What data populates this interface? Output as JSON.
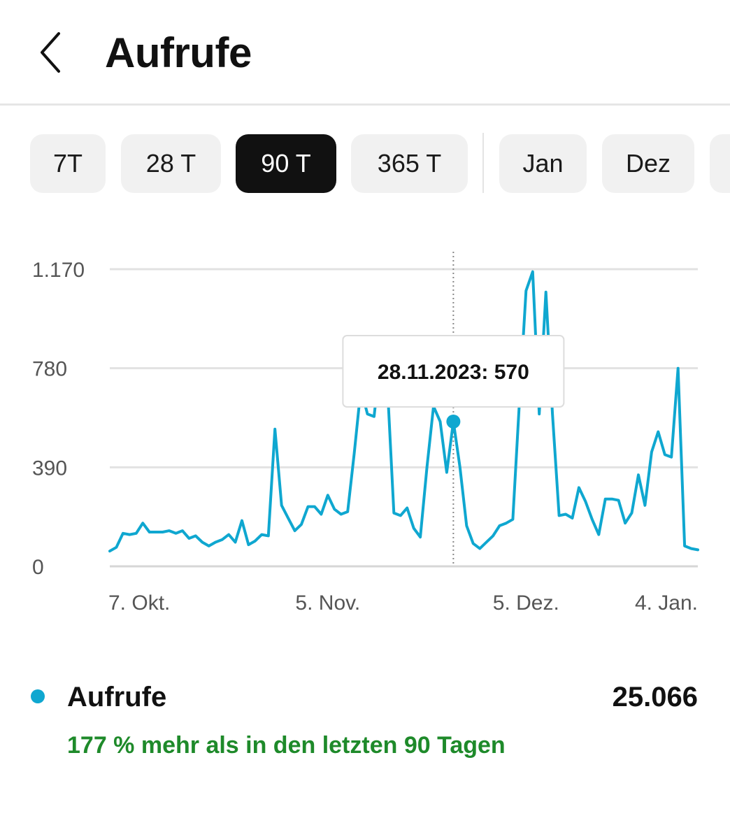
{
  "header": {
    "title": "Aufrufe",
    "back_icon": "chevron-left-icon"
  },
  "tabs": [
    {
      "label": "7T",
      "active": false
    },
    {
      "label": "28 T",
      "active": false
    },
    {
      "label": "90 T",
      "active": true
    },
    {
      "label": "365 T",
      "active": false
    },
    {
      "label": "Jan",
      "active": false
    },
    {
      "label": "Dez",
      "active": false
    },
    {
      "label": "",
      "active": false
    }
  ],
  "colors": {
    "line": "#0fa7d0",
    "positive": "#1e8a2a",
    "active_tab": "#111111",
    "tab_bg": "#f1f1f1"
  },
  "chart_data": {
    "type": "line",
    "title": "",
    "xlabel": "",
    "ylabel": "",
    "ylim": [
      0,
      1170
    ],
    "y_ticks": [
      {
        "value": 0,
        "label": "0"
      },
      {
        "value": 390,
        "label": "390"
      },
      {
        "value": 780,
        "label": "780"
      },
      {
        "value": 1170,
        "label": "1.170"
      }
    ],
    "x_ticks": [
      {
        "index": 4,
        "label": "7. Okt."
      },
      {
        "index": 33,
        "label": "5. Nov."
      },
      {
        "index": 63,
        "label": "5. Dez."
      },
      {
        "index": 93,
        "label": "4. Jan."
      }
    ],
    "grid": true,
    "series": [
      {
        "name": "Aufrufe",
        "values": [
          60,
          75,
          130,
          125,
          130,
          170,
          135,
          135,
          135,
          140,
          130,
          140,
          110,
          120,
          95,
          80,
          95,
          105,
          125,
          95,
          180,
          85,
          100,
          125,
          120,
          540,
          240,
          190,
          140,
          165,
          235,
          235,
          205,
          280,
          225,
          205,
          215,
          445,
          700,
          600,
          590,
          830,
          720,
          210,
          200,
          230,
          150,
          115,
          390,
          630,
          570,
          370,
          570,
          390,
          160,
          90,
          70,
          95,
          120,
          160,
          170,
          185,
          650,
          1085,
          1160,
          600,
          1080,
          600,
          200,
          205,
          190,
          310,
          255,
          185,
          125,
          265,
          265,
          260,
          170,
          210,
          360,
          240,
          450,
          530,
          440,
          430,
          780,
          80,
          70,
          65
        ],
        "selected": {
          "index": 52,
          "date": "28.11.2023",
          "value": 570
        }
      }
    ],
    "tooltip": "28.11.2023: 570"
  },
  "legend": {
    "name": "Aufrufe",
    "total": "25.066",
    "change": "177 % mehr als in den letzten 90 Tagen"
  }
}
